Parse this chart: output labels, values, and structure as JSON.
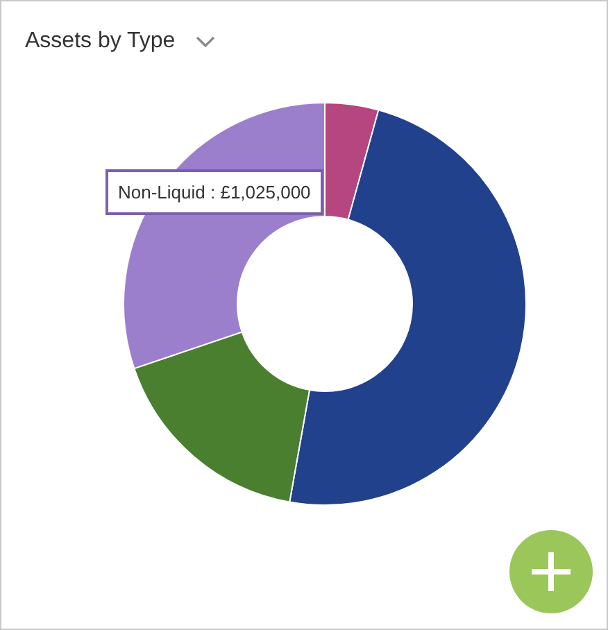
{
  "chart_data": {
    "type": "donut",
    "title": "Assets by Type",
    "categories": [
      null,
      null,
      null,
      null
    ],
    "values": [
      4.3,
      48.5,
      17,
      30.2
    ],
    "colors": [
      "#b5467f",
      "#22418c",
      "#4a7f30",
      "#9b7fcc"
    ],
    "annotations": [
      "Non-Liquid : £1,025,000"
    ],
    "legend": false
  }
}
